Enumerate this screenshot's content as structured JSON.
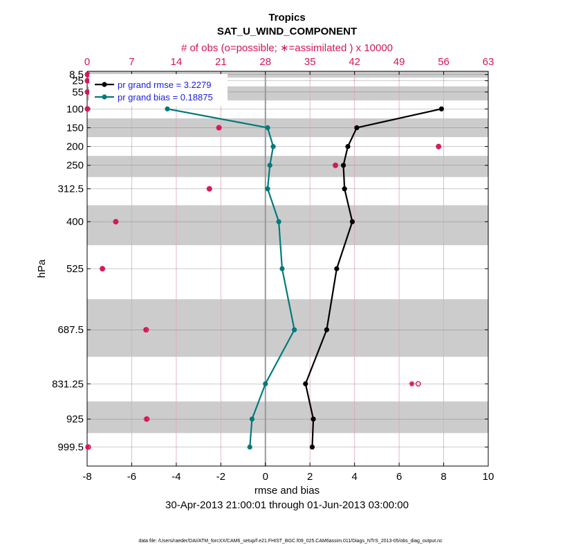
{
  "chart_data": {
    "type": "line",
    "title": "Tropics",
    "subtitle": "SAT_U_WIND_COMPONENT",
    "top_axis_label": "# of obs (o=possible; ∗=assimilated ) x 10000",
    "xlabel": "rmse and bias",
    "ylabel": "hPa",
    "date_range": "30-Apr-2013 21:00:01 through 01-Jun-2013 03:00:00",
    "footer": "data file: /Users/raeder/DAI/ATM_forcXX/CAM6_setup/f.e21.FHIST_BGC.f09_025.CAM6assim.011/Diags_NTrS_2013-05/obs_diag_output.nc",
    "xlim": [
      -8,
      10
    ],
    "x_ticks": [
      "-8",
      "-6",
      "-4",
      "-2",
      "0",
      "2",
      "4",
      "6",
      "8",
      "10"
    ],
    "top_xlim": [
      0,
      63
    ],
    "top_ticks": [
      "0",
      "7",
      "14",
      "21",
      "28",
      "35",
      "42",
      "49",
      "56",
      "63"
    ],
    "levels": [
      8.5,
      25,
      55,
      100,
      150,
      200,
      250,
      312.5,
      400,
      525,
      687.5,
      831.25,
      925,
      999.5
    ],
    "level_labels": [
      "8.5",
      "25",
      "55",
      "100",
      "150",
      "200",
      "250",
      "312.5",
      "400",
      "525",
      "687.5",
      "831.25",
      "925",
      "999.5"
    ],
    "legend": {
      "rmse": "pr grand rmse = 3.2279",
      "bias": "pr grand bias = 0.18875"
    },
    "series": [
      {
        "name": "rmse",
        "color": "#000000",
        "levels": [
          100,
          150,
          200,
          250,
          312.5,
          400,
          525,
          687.5,
          831.25,
          925,
          999.5
        ],
        "values": [
          7.9,
          4.1,
          3.7,
          3.5,
          3.55,
          3.9,
          3.2,
          2.75,
          1.8,
          2.15,
          2.1
        ]
      },
      {
        "name": "bias",
        "color": "#007a7a",
        "levels": [
          100,
          150,
          200,
          250,
          312.5,
          400,
          525,
          687.5,
          831.25,
          925,
          999.5
        ],
        "values": [
          -4.4,
          0.1,
          0.35,
          0.2,
          0.1,
          0.6,
          0.75,
          1.3,
          0.0,
          -0.6,
          -0.7
        ]
      }
    ],
    "obs_counts": {
      "levels": [
        8.5,
        25,
        55,
        100,
        150,
        200,
        250,
        312.5,
        400,
        525,
        687.5,
        831.25,
        925,
        999.5
      ],
      "possible": [
        0.05,
        0.05,
        0.05,
        0.05,
        20.7,
        55.2,
        39.0,
        19.2,
        4.5,
        2.4,
        9.3,
        52.0,
        9.4,
        0.2
      ],
      "assimilated": [
        0.05,
        0.05,
        0.05,
        0.05,
        20.7,
        55.2,
        39.0,
        19.2,
        4.5,
        2.4,
        9.2,
        51.0,
        9.3,
        0.1
      ]
    },
    "colors": {
      "obs": "#d3145a",
      "shade": "#cccccc",
      "legend_text": "#1a1ae6"
    }
  }
}
